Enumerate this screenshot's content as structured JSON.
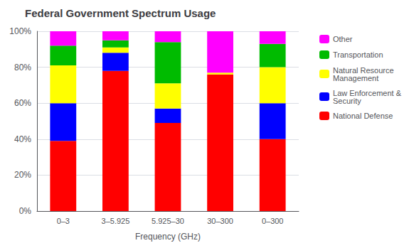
{
  "chart_data": {
    "type": "bar",
    "title": "Federal Government Spectrum Usage",
    "x_label": "Frequency (GHz)",
    "categories": [
      "0–3",
      "3–5.925",
      "5.925–30",
      "30–300",
      "0–300"
    ],
    "stacked": true,
    "series": [
      {
        "name": "National Defense",
        "color": "#ff0000",
        "values": [
          39,
          78,
          49,
          76,
          40
        ]
      },
      {
        "name": "Law Enforcement &\nSecurity",
        "color": "#0000ff",
        "values": [
          21,
          10,
          8,
          0,
          20
        ]
      },
      {
        "name": "Natural Resource\nManagement",
        "color": "#ffff00",
        "values": [
          21,
          3,
          14,
          1,
          20
        ]
      },
      {
        "name": "Transportation",
        "color": "#00bb00",
        "values": [
          11,
          4,
          23,
          0,
          13
        ]
      },
      {
        "name": "Other",
        "color": "#ff00ff",
        "values": [
          8,
          5,
          6,
          23,
          7
        ]
      }
    ],
    "ylim": [
      0,
      100
    ],
    "yticks": [
      {
        "value": 0,
        "label": "0%"
      },
      {
        "value": 20,
        "label": "20%"
      },
      {
        "value": 40,
        "label": "40%"
      },
      {
        "value": 60,
        "label": "60%"
      },
      {
        "value": 80,
        "label": "80%"
      },
      {
        "value": 100,
        "label": "100%"
      }
    ],
    "grid": true,
    "legend": "right"
  }
}
